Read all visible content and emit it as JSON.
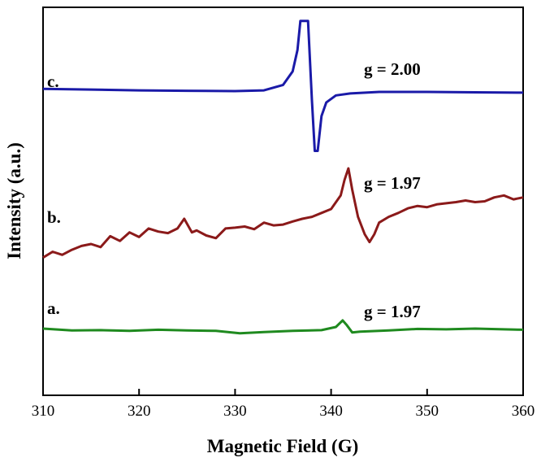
{
  "chart_data": {
    "type": "line",
    "xlabel": "Magnetic Field (G)",
    "ylabel": "Intensity (a.u.)",
    "xlim": [
      310,
      360
    ],
    "xticks": [
      310,
      320,
      330,
      340,
      350,
      360
    ],
    "ylim": [
      0,
      10
    ],
    "yticks": [],
    "grid": false,
    "legend": "none",
    "series": [
      {
        "name": "a.",
        "color": "#1f8a1f",
        "annotation": "g = 1.97",
        "x": [
          310,
          313,
          316,
          319,
          322,
          325,
          328,
          330.5,
          333,
          336,
          339,
          340.5,
          341.2,
          341.6,
          342.2,
          343,
          346,
          349,
          352,
          355,
          358,
          360
        ],
        "y": [
          1.72,
          1.67,
          1.68,
          1.66,
          1.69,
          1.67,
          1.66,
          1.6,
          1.63,
          1.66,
          1.68,
          1.76,
          1.93,
          1.82,
          1.62,
          1.64,
          1.67,
          1.71,
          1.7,
          1.72,
          1.7,
          1.69
        ]
      },
      {
        "name": "b.",
        "color": "#8b1a1a",
        "annotation": "g = 1.97",
        "x": [
          310,
          311,
          312,
          313,
          314,
          315,
          316,
          317,
          318,
          319,
          320,
          321,
          322,
          323,
          324,
          324.7,
          325.5,
          326,
          327,
          328,
          329,
          330,
          331,
          332,
          333,
          334,
          335,
          336,
          337,
          338,
          339,
          340,
          341,
          341.4,
          341.8,
          342.2,
          342.8,
          343.5,
          344,
          344.5,
          345,
          346,
          347,
          348,
          349,
          350,
          351,
          352,
          353,
          354,
          355,
          356,
          357,
          358,
          359,
          360
        ],
        "y": [
          3.55,
          3.7,
          3.62,
          3.75,
          3.85,
          3.9,
          3.82,
          4.1,
          3.98,
          4.2,
          4.08,
          4.3,
          4.22,
          4.18,
          4.3,
          4.55,
          4.2,
          4.25,
          4.12,
          4.05,
          4.3,
          4.32,
          4.35,
          4.28,
          4.45,
          4.38,
          4.4,
          4.48,
          4.55,
          4.6,
          4.7,
          4.8,
          5.15,
          5.55,
          5.85,
          5.3,
          4.6,
          4.15,
          3.95,
          4.15,
          4.45,
          4.6,
          4.7,
          4.82,
          4.88,
          4.85,
          4.92,
          4.95,
          4.98,
          5.02,
          4.98,
          5.0,
          5.1,
          5.15,
          5.05,
          5.1
        ]
      },
      {
        "name": "c.",
        "color": "#1a1aa8",
        "annotation": "g = 2.00",
        "x": [
          310,
          315,
          320,
          325,
          330,
          333,
          335,
          336,
          336.5,
          336.8,
          337.6,
          338.0,
          338.3,
          338.6,
          339.0,
          339.5,
          340.5,
          342,
          345,
          350,
          355,
          360
        ],
        "y": [
          7.9,
          7.88,
          7.86,
          7.85,
          7.84,
          7.86,
          8.0,
          8.35,
          8.9,
          9.65,
          9.65,
          7.6,
          6.3,
          6.3,
          7.2,
          7.55,
          7.73,
          7.78,
          7.82,
          7.82,
          7.81,
          7.8
        ]
      }
    ]
  }
}
